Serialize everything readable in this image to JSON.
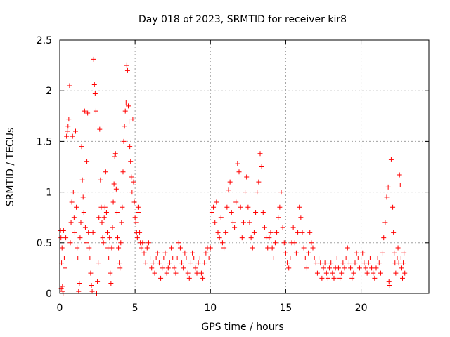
{
  "chart_data": {
    "type": "scatter",
    "title": "Day 018 of 2023, SRMTID for receiver kir8",
    "xlabel": "GPS time / hours",
    "ylabel": "SRMTID / TECUs",
    "xlim": [
      0,
      24.5
    ],
    "ylim": [
      0,
      2.5
    ],
    "xticks": [
      0,
      5,
      10,
      15,
      20
    ],
    "xtick_labels": [
      "0",
      "5",
      "10",
      "15",
      "20"
    ],
    "yticks": [
      0,
      0.5,
      1,
      1.5,
      2,
      2.5
    ],
    "ytick_labels": [
      "0",
      "0.5",
      "1",
      "1.5",
      "2",
      "2.5"
    ],
    "grid": true,
    "marker": "+",
    "marker_color": "#ff0000",
    "series": [
      {
        "name": "SRMTID",
        "points": [
          [
            0.05,
            0.62
          ],
          [
            0.08,
            0.55
          ],
          [
            0.1,
            0.05
          ],
          [
            0.12,
            0.3
          ],
          [
            0.15,
            0.45
          ],
          [
            0.18,
            0.07
          ],
          [
            0.2,
            0.02
          ],
          [
            0.22,
            0.0
          ],
          [
            0.25,
            0.62
          ],
          [
            0.3,
            0.35
          ],
          [
            0.35,
            0.25
          ],
          [
            0.4,
            0.55
          ],
          [
            0.45,
            1.55
          ],
          [
            0.5,
            1.6
          ],
          [
            0.55,
            1.65
          ],
          [
            0.6,
            1.72
          ],
          [
            0.65,
            2.05
          ],
          [
            0.7,
            0.5
          ],
          [
            0.75,
            0.7
          ],
          [
            0.8,
            0.9
          ],
          [
            0.85,
            1.55
          ],
          [
            0.9,
            1.0
          ],
          [
            0.95,
            0.75
          ],
          [
            1.0,
            0.6
          ],
          [
            1.05,
            1.6
          ],
          [
            1.1,
            0.85
          ],
          [
            1.15,
            0.45
          ],
          [
            1.2,
            0.35
          ],
          [
            1.25,
            0.02
          ],
          [
            1.3,
            0.1
          ],
          [
            1.35,
            0.55
          ],
          [
            1.4,
            0.7
          ],
          [
            1.45,
            1.45
          ],
          [
            1.5,
            1.12
          ],
          [
            1.55,
            0.95
          ],
          [
            1.6,
            0.8
          ],
          [
            1.65,
            1.8
          ],
          [
            1.7,
            0.65
          ],
          [
            1.75,
            0.5
          ],
          [
            1.8,
            1.3
          ],
          [
            1.85,
            1.78
          ],
          [
            1.9,
            0.6
          ],
          [
            1.95,
            0.45
          ],
          [
            2.0,
            0.35
          ],
          [
            2.05,
            0.2
          ],
          [
            2.1,
            0.08
          ],
          [
            2.15,
            0.02
          ],
          [
            2.2,
            0.6
          ],
          [
            2.25,
            2.31
          ],
          [
            2.3,
            2.06
          ],
          [
            2.35,
            1.97
          ],
          [
            2.4,
            1.8
          ],
          [
            2.45,
            0.0
          ],
          [
            2.5,
            0.12
          ],
          [
            2.55,
            0.3
          ],
          [
            2.6,
            0.75
          ],
          [
            2.65,
            1.62
          ],
          [
            2.7,
            1.12
          ],
          [
            2.75,
            0.85
          ],
          [
            2.8,
            0.7
          ],
          [
            2.85,
            0.55
          ],
          [
            2.9,
            0.5
          ],
          [
            2.95,
            0.75
          ],
          [
            3.0,
            0.85
          ],
          [
            3.05,
            1.2
          ],
          [
            3.1,
            0.8
          ],
          [
            3.15,
            0.6
          ],
          [
            3.2,
            0.45
          ],
          [
            3.25,
            0.35
          ],
          [
            3.3,
            0.55
          ],
          [
            3.35,
            0.2
          ],
          [
            3.4,
            0.1
          ],
          [
            3.45,
            0.45
          ],
          [
            3.5,
            0.65
          ],
          [
            3.55,
            0.9
          ],
          [
            3.6,
            1.08
          ],
          [
            3.65,
            1.35
          ],
          [
            3.7,
            1.38
          ],
          [
            3.75,
            1.03
          ],
          [
            3.8,
            0.8
          ],
          [
            3.85,
            0.55
          ],
          [
            3.9,
            0.45
          ],
          [
            3.95,
            0.3
          ],
          [
            4.0,
            0.25
          ],
          [
            4.05,
            0.5
          ],
          [
            4.1,
            0.7
          ],
          [
            4.15,
            0.85
          ],
          [
            4.2,
            1.2
          ],
          [
            4.25,
            1.5
          ],
          [
            4.3,
            1.65
          ],
          [
            4.35,
            1.8
          ],
          [
            4.4,
            1.88
          ],
          [
            4.45,
            2.25
          ],
          [
            4.5,
            2.2
          ],
          [
            4.55,
            1.85
          ],
          [
            4.6,
            1.7
          ],
          [
            4.65,
            1.45
          ],
          [
            4.7,
            1.3
          ],
          [
            4.75,
            1.15
          ],
          [
            4.8,
            1.0
          ],
          [
            4.85,
            1.72
          ],
          [
            4.9,
            1.1
          ],
          [
            4.95,
            0.9
          ],
          [
            5.0,
            0.75
          ],
          [
            5.05,
            0.7
          ],
          [
            5.1,
            0.6
          ],
          [
            5.15,
            0.55
          ],
          [
            5.2,
            0.85
          ],
          [
            5.25,
            0.8
          ],
          [
            5.3,
            0.6
          ],
          [
            5.35,
            0.5
          ],
          [
            5.4,
            0.45
          ],
          [
            5.5,
            0.5
          ],
          [
            5.6,
            0.4
          ],
          [
            5.7,
            0.3
          ],
          [
            5.8,
            0.45
          ],
          [
            5.9,
            0.5
          ],
          [
            6.0,
            0.35
          ],
          [
            6.1,
            0.25
          ],
          [
            6.2,
            0.3
          ],
          [
            6.3,
            0.2
          ],
          [
            6.4,
            0.35
          ],
          [
            6.5,
            0.4
          ],
          [
            6.6,
            0.3
          ],
          [
            6.7,
            0.15
          ],
          [
            6.8,
            0.25
          ],
          [
            6.9,
            0.35
          ],
          [
            7.0,
            0.4
          ],
          [
            7.1,
            0.2
          ],
          [
            7.2,
            0.25
          ],
          [
            7.3,
            0.3
          ],
          [
            7.4,
            0.45
          ],
          [
            7.5,
            0.35
          ],
          [
            7.6,
            0.25
          ],
          [
            7.7,
            0.2
          ],
          [
            7.8,
            0.35
          ],
          [
            7.9,
            0.5
          ],
          [
            8.0,
            0.45
          ],
          [
            8.1,
            0.3
          ],
          [
            8.2,
            0.25
          ],
          [
            8.3,
            0.4
          ],
          [
            8.4,
            0.35
          ],
          [
            8.5,
            0.2
          ],
          [
            8.6,
            0.15
          ],
          [
            8.7,
            0.3
          ],
          [
            8.8,
            0.4
          ],
          [
            8.9,
            0.35
          ],
          [
            9.0,
            0.25
          ],
          [
            9.1,
            0.2
          ],
          [
            9.2,
            0.3
          ],
          [
            9.3,
            0.35
          ],
          [
            9.4,
            0.2
          ],
          [
            9.5,
            0.15
          ],
          [
            9.6,
            0.3
          ],
          [
            9.7,
            0.4
          ],
          [
            9.8,
            0.45
          ],
          [
            9.9,
            0.35
          ],
          [
            10.0,
            0.45
          ],
          [
            10.1,
            0.8
          ],
          [
            10.2,
            0.85
          ],
          [
            10.3,
            0.7
          ],
          [
            10.4,
            0.9
          ],
          [
            10.5,
            0.6
          ],
          [
            10.6,
            0.55
          ],
          [
            10.7,
            0.75
          ],
          [
            10.8,
            0.5
          ],
          [
            10.9,
            0.45
          ],
          [
            11.0,
            0.6
          ],
          [
            11.1,
            0.85
          ],
          [
            11.2,
            1.02
          ],
          [
            11.3,
            1.1
          ],
          [
            11.4,
            0.8
          ],
          [
            11.5,
            0.7
          ],
          [
            11.6,
            0.65
          ],
          [
            11.7,
            0.9
          ],
          [
            11.8,
            1.28
          ],
          [
            11.9,
            1.2
          ],
          [
            12.0,
            0.85
          ],
          [
            12.1,
            0.55
          ],
          [
            12.2,
            0.7
          ],
          [
            12.3,
            1.0
          ],
          [
            12.4,
            1.15
          ],
          [
            12.5,
            0.85
          ],
          [
            12.6,
            0.7
          ],
          [
            12.7,
            0.55
          ],
          [
            12.8,
            0.45
          ],
          [
            12.9,
            0.6
          ],
          [
            13.0,
            0.8
          ],
          [
            13.1,
            1.0
          ],
          [
            13.2,
            1.1
          ],
          [
            13.3,
            1.38
          ],
          [
            13.4,
            1.25
          ],
          [
            13.5,
            0.8
          ],
          [
            13.6,
            0.65
          ],
          [
            13.7,
            0.55
          ],
          [
            13.8,
            0.45
          ],
          [
            13.9,
            0.55
          ],
          [
            14.0,
            0.6
          ],
          [
            14.1,
            0.45
          ],
          [
            14.2,
            0.35
          ],
          [
            14.3,
            0.5
          ],
          [
            14.4,
            0.6
          ],
          [
            14.5,
            0.75
          ],
          [
            14.6,
            0.85
          ],
          [
            14.7,
            1.0
          ],
          [
            14.8,
            0.65
          ],
          [
            14.9,
            0.5
          ],
          [
            15.0,
            0.4
          ],
          [
            15.1,
            0.3
          ],
          [
            15.2,
            0.25
          ],
          [
            15.3,
            0.35
          ],
          [
            15.4,
            0.5
          ],
          [
            15.5,
            0.65
          ],
          [
            15.6,
            0.5
          ],
          [
            15.7,
            0.4
          ],
          [
            15.8,
            0.6
          ],
          [
            15.9,
            0.85
          ],
          [
            16.0,
            0.75
          ],
          [
            16.1,
            0.6
          ],
          [
            16.2,
            0.45
          ],
          [
            16.3,
            0.35
          ],
          [
            16.4,
            0.25
          ],
          [
            16.5,
            0.4
          ],
          [
            16.6,
            0.6
          ],
          [
            16.7,
            0.5
          ],
          [
            16.8,
            0.45
          ],
          [
            16.9,
            0.35
          ],
          [
            17.0,
            0.3
          ],
          [
            17.1,
            0.2
          ],
          [
            17.2,
            0.35
          ],
          [
            17.3,
            0.3
          ],
          [
            17.4,
            0.15
          ],
          [
            17.5,
            0.25
          ],
          [
            17.6,
            0.3
          ],
          [
            17.7,
            0.2
          ],
          [
            17.8,
            0.15
          ],
          [
            17.9,
            0.25
          ],
          [
            18.0,
            0.3
          ],
          [
            18.1,
            0.2
          ],
          [
            18.2,
            0.15
          ],
          [
            18.3,
            0.25
          ],
          [
            18.4,
            0.35
          ],
          [
            18.5,
            0.25
          ],
          [
            18.6,
            0.15
          ],
          [
            18.7,
            0.2
          ],
          [
            18.8,
            0.3
          ],
          [
            18.9,
            0.25
          ],
          [
            19.0,
            0.35
          ],
          [
            19.1,
            0.45
          ],
          [
            19.2,
            0.3
          ],
          [
            19.3,
            0.25
          ],
          [
            19.4,
            0.15
          ],
          [
            19.5,
            0.2
          ],
          [
            19.6,
            0.3
          ],
          [
            19.7,
            0.4
          ],
          [
            19.8,
            0.35
          ],
          [
            19.9,
            0.25
          ],
          [
            20.0,
            0.35
          ],
          [
            20.1,
            0.4
          ],
          [
            20.2,
            0.3
          ],
          [
            20.3,
            0.25
          ],
          [
            20.4,
            0.2
          ],
          [
            20.5,
            0.3
          ],
          [
            20.6,
            0.35
          ],
          [
            20.7,
            0.25
          ],
          [
            20.8,
            0.2
          ],
          [
            20.9,
            0.15
          ],
          [
            21.0,
            0.25
          ],
          [
            21.1,
            0.35
          ],
          [
            21.2,
            0.3
          ],
          [
            21.3,
            0.2
          ],
          [
            21.4,
            0.4
          ],
          [
            21.5,
            0.55
          ],
          [
            21.6,
            0.7
          ],
          [
            21.7,
            0.95
          ],
          [
            21.8,
            1.05
          ],
          [
            21.85,
            0.12
          ],
          [
            21.9,
            0.08
          ],
          [
            22.0,
            1.32
          ],
          [
            22.05,
            1.16
          ],
          [
            22.1,
            0.85
          ],
          [
            22.15,
            0.6
          ],
          [
            22.2,
            0.4
          ],
          [
            22.25,
            0.3
          ],
          [
            22.3,
            0.2
          ],
          [
            22.4,
            0.35
          ],
          [
            22.45,
            0.45
          ],
          [
            22.5,
            0.3
          ],
          [
            22.55,
            1.17
          ],
          [
            22.6,
            1.07
          ],
          [
            22.65,
            0.35
          ],
          [
            22.7,
            0.25
          ],
          [
            22.75,
            0.15
          ],
          [
            22.8,
            0.3
          ],
          [
            22.85,
            0.4
          ],
          [
            22.9,
            0.2
          ]
        ]
      }
    ]
  }
}
